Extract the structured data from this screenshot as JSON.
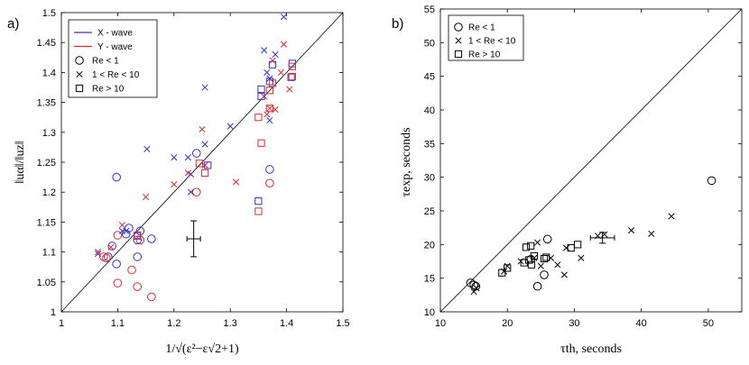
{
  "colors": {
    "x_wave": "#3030d8",
    "y_wave": "#e02828",
    "black": "#000000"
  },
  "chart_data": [
    {
      "type": "scatter",
      "panel_label": "a)",
      "xlabel": "1/√(ε²−ε√2+1)",
      "ylabel": "‖uα‖/‖uz‖",
      "xlim": [
        1,
        1.5
      ],
      "ylim": [
        1,
        1.5
      ],
      "xticks": [
        "1",
        "1.1",
        "1.2",
        "1.3",
        "1.4",
        "1.5"
      ],
      "yticks": [
        "1",
        "1.05",
        "1.1",
        "1.15",
        "1.2",
        "1.25",
        "1.3",
        "1.35",
        "1.4",
        "1.45",
        "1.5"
      ],
      "reference_line": [
        [
          1,
          1
        ],
        [
          1.5,
          1.5
        ]
      ],
      "legend": {
        "position": "top-left",
        "items": [
          {
            "label": "X - wave",
            "kind": "line",
            "color": "#3030d8"
          },
          {
            "label": "Y - wave",
            "kind": "line",
            "color": "#e02828"
          },
          {
            "label": "Re < 1",
            "kind": "circle"
          },
          {
            "label": "1 < Re < 10",
            "kind": "cross"
          },
          {
            "label": "Re > 10",
            "kind": "square"
          }
        ]
      },
      "error_bar": {
        "x": 1.235,
        "y": 1.122,
        "xerr": 0.012,
        "yerr": 0.03
      },
      "series": [
        {
          "name": "X - wave, Re < 1",
          "marker": "circle",
          "color": "#3030d8",
          "points": [
            [
              1.098,
              1.225
            ],
            [
              1.083,
              1.092
            ],
            [
              1.09,
              1.11
            ],
            [
              1.098,
              1.08
            ],
            [
              1.115,
              1.13
            ],
            [
              1.135,
              1.12
            ],
            [
              1.14,
              1.135
            ],
            [
              1.16,
              1.122
            ],
            [
              1.24,
              1.265
            ],
            [
              1.37,
              1.238
            ],
            [
              1.12,
              1.14
            ],
            [
              1.135,
              1.092
            ]
          ]
        },
        {
          "name": "Y - wave, Re < 1",
          "marker": "circle",
          "color": "#e02828",
          "points": [
            [
              1.075,
              1.092
            ],
            [
              1.08,
              1.09
            ],
            [
              1.1,
              1.128
            ],
            [
              1.1,
              1.048
            ],
            [
              1.125,
              1.07
            ],
            [
              1.135,
              1.042
            ],
            [
              1.16,
              1.025
            ],
            [
              1.24,
              1.2
            ],
            [
              1.37,
              1.215
            ],
            [
              1.14,
              1.12
            ]
          ]
        },
        {
          "name": "X - wave, 1 < Re < 10",
          "marker": "cross",
          "color": "#3030d8",
          "points": [
            [
              1.065,
              1.097
            ],
            [
              1.108,
              1.135
            ],
            [
              1.115,
              1.135
            ],
            [
              1.152,
              1.272
            ],
            [
              1.2,
              1.258
            ],
            [
              1.225,
              1.258
            ],
            [
              1.255,
              1.375
            ],
            [
              1.3,
              1.31
            ],
            [
              1.36,
              1.437
            ],
            [
              1.365,
              1.4
            ],
            [
              1.38,
              1.43
            ],
            [
              1.395,
              1.493
            ],
            [
              1.37,
              1.39
            ],
            [
              1.23,
              1.2
            ],
            [
              1.255,
              1.28
            ],
            [
              1.23,
              1.23
            ],
            [
              1.37,
              1.32
            ]
          ]
        },
        {
          "name": "Y - wave, 1 < Re < 10",
          "marker": "cross",
          "color": "#e02828",
          "points": [
            [
              1.065,
              1.1
            ],
            [
              1.088,
              1.108
            ],
            [
              1.108,
              1.145
            ],
            [
              1.15,
              1.192
            ],
            [
              1.2,
              1.213
            ],
            [
              1.225,
              1.232
            ],
            [
              1.25,
              1.305
            ],
            [
              1.255,
              1.245
            ],
            [
              1.31,
              1.217
            ],
            [
              1.36,
              1.36
            ],
            [
              1.37,
              1.34
            ],
            [
              1.38,
              1.338
            ],
            [
              1.39,
              1.4
            ],
            [
              1.395,
              1.447
            ],
            [
              1.405,
              1.372
            ],
            [
              1.375,
              1.42
            ],
            [
              1.365,
              1.33
            ]
          ]
        },
        {
          "name": "X - wave, Re > 10",
          "marker": "square",
          "color": "#3030d8",
          "points": [
            [
              1.135,
              1.127
            ],
            [
              1.26,
              1.245
            ],
            [
              1.35,
              1.185
            ],
            [
              1.355,
              1.36
            ],
            [
              1.37,
              1.385
            ],
            [
              1.375,
              1.413
            ],
            [
              1.41,
              1.415
            ],
            [
              1.355,
              1.372
            ],
            [
              1.408,
              1.392
            ]
          ]
        },
        {
          "name": "Y - wave, Re > 10",
          "marker": "square",
          "color": "#e02828",
          "points": [
            [
              1.135,
              1.128
            ],
            [
              1.245,
              1.248
            ],
            [
              1.255,
              1.232
            ],
            [
              1.35,
              1.168
            ],
            [
              1.355,
              1.282
            ],
            [
              1.35,
              1.325
            ],
            [
              1.37,
              1.34
            ],
            [
              1.375,
              1.382
            ],
            [
              1.41,
              1.393
            ],
            [
              1.41,
              1.41
            ],
            [
              1.37,
              1.37
            ]
          ]
        }
      ]
    },
    {
      "type": "scatter",
      "panel_label": "b)",
      "xlabel": "τth, seconds",
      "ylabel": "τexp, seconds",
      "xlim": [
        10,
        55
      ],
      "ylim": [
        10,
        55
      ],
      "xticks": [
        "10",
        "20",
        "30",
        "40",
        "50"
      ],
      "yticks": [
        "10",
        "15",
        "20",
        "25",
        "30",
        "35",
        "40",
        "45",
        "50",
        "55"
      ],
      "reference_line": [
        [
          10,
          10
        ],
        [
          55,
          55
        ]
      ],
      "legend": {
        "position": "top-left",
        "items": [
          {
            "label": "Re < 1",
            "kind": "circle"
          },
          {
            "label": "1 < Re < 10",
            "kind": "cross"
          },
          {
            "label": "Re > 10",
            "kind": "square"
          }
        ]
      },
      "error_bar": {
        "x": 34.2,
        "y": 21.0,
        "xerr": 1.8,
        "yerr": 0.8
      },
      "series": [
        {
          "name": "Re < 1",
          "marker": "circle",
          "color": "#000000",
          "points": [
            [
              14.5,
              14.3
            ],
            [
              15.0,
              14.0
            ],
            [
              15.3,
              13.8
            ],
            [
              23.5,
              17.8
            ],
            [
              24.5,
              13.8
            ],
            [
              25.5,
              15.5
            ],
            [
              26.0,
              20.8
            ],
            [
              50.5,
              29.5
            ]
          ]
        },
        {
          "name": "1 < Re < 10",
          "marker": "cross",
          "color": "#000000",
          "points": [
            [
              15.0,
              13.0
            ],
            [
              15.4,
              13.5
            ],
            [
              19.5,
              16.0
            ],
            [
              20.0,
              16.8
            ],
            [
              22.0,
              17.5
            ],
            [
              24.0,
              18.0
            ],
            [
              24.5,
              20.3
            ],
            [
              25.0,
              16.8
            ],
            [
              26.5,
              18.0
            ],
            [
              27.5,
              17.0
            ],
            [
              28.5,
              15.5
            ],
            [
              28.8,
              19.5
            ],
            [
              31.0,
              18.0
            ],
            [
              34.5,
              21.5
            ],
            [
              38.5,
              22.1
            ],
            [
              41.5,
              21.6
            ],
            [
              44.5,
              24.2
            ],
            [
              33.5,
              21.3
            ]
          ]
        },
        {
          "name": "Re > 10",
          "marker": "square",
          "color": "#000000",
          "points": [
            [
              19.2,
              15.8
            ],
            [
              20.0,
              16.5
            ],
            [
              22.5,
              17.3
            ],
            [
              22.8,
              19.6
            ],
            [
              23.2,
              17.7
            ],
            [
              23.5,
              19.8
            ],
            [
              23.6,
              17.0
            ],
            [
              24.0,
              18.3
            ],
            [
              25.5,
              17.9
            ],
            [
              25.8,
              18.1
            ],
            [
              29.5,
              19.5
            ],
            [
              30.5,
              20.0
            ]
          ]
        }
      ]
    }
  ]
}
